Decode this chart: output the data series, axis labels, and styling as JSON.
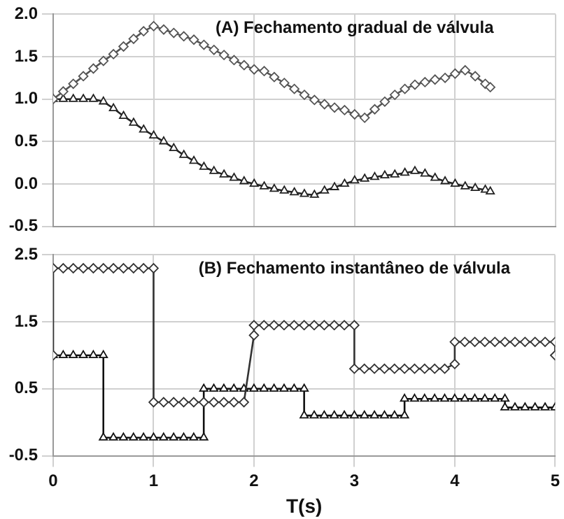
{
  "chart_data": [
    {
      "type": "line",
      "annotations": [
        "(A) Fechamento gradual de válvula"
      ],
      "xlim": [
        0,
        5
      ],
      "xticks": [
        0,
        1,
        2,
        3,
        4,
        5
      ],
      "ylim": [
        -0.5,
        2.0
      ],
      "yticks": [
        {
          "value": -0.5,
          "label": "-0.5"
        },
        {
          "value": 0,
          "label": "0.0"
        },
        {
          "value": 0.5,
          "label": "0.5"
        },
        {
          "value": 1,
          "label": "1.0"
        },
        {
          "value": 1.5,
          "label": "1.5"
        },
        {
          "value": 2,
          "label": "2.0"
        }
      ],
      "tick_labels": "y",
      "grid": true,
      "legend": false,
      "line_style": "solid",
      "series": [
        {
          "color": "#555555",
          "marker": "diamond",
          "x": [
            0,
            0.1,
            0.2,
            0.3,
            0.4,
            0.5,
            0.6,
            0.7,
            0.8,
            0.9,
            1,
            1.1,
            1.2,
            1.3,
            1.4,
            1.5,
            1.6,
            1.7,
            1.8,
            1.9,
            2,
            2.1,
            2.2,
            2.3,
            2.4,
            2.5,
            2.6,
            2.7,
            2.8,
            2.9,
            3,
            3.1,
            3.2,
            3.3,
            3.4,
            3.5,
            3.6,
            3.7,
            3.8,
            3.9,
            4,
            4.1,
            4.2,
            4.3,
            4.35
          ],
          "values": [
            1.0,
            1.09,
            1.18,
            1.27,
            1.36,
            1.45,
            1.53,
            1.62,
            1.71,
            1.8,
            1.86,
            1.82,
            1.78,
            1.74,
            1.7,
            1.64,
            1.58,
            1.52,
            1.46,
            1.4,
            1.35,
            1.33,
            1.26,
            1.19,
            1.12,
            1.05,
            0.99,
            0.94,
            0.9,
            0.87,
            0.82,
            0.78,
            0.88,
            0.97,
            1.05,
            1.12,
            1.17,
            1.2,
            1.23,
            1.25,
            1.3,
            1.34,
            1.27,
            1.18,
            1.14
          ]
        },
        {
          "color": "#222222",
          "marker": "triangle",
          "x": [
            0,
            0.1,
            0.2,
            0.3,
            0.4,
            0.5,
            0.6,
            0.7,
            0.8,
            0.9,
            1,
            1.1,
            1.2,
            1.3,
            1.4,
            1.5,
            1.6,
            1.7,
            1.8,
            1.9,
            2,
            2.1,
            2.2,
            2.3,
            2.4,
            2.5,
            2.6,
            2.7,
            2.8,
            2.9,
            3,
            3.1,
            3.2,
            3.3,
            3.4,
            3.5,
            3.6,
            3.7,
            3.8,
            3.9,
            4,
            4.1,
            4.2,
            4.3,
            4.35
          ],
          "values": [
            1.0,
            1.0,
            1.0,
            1.0,
            1.0,
            0.97,
            0.89,
            0.8,
            0.72,
            0.64,
            0.57,
            0.5,
            0.42,
            0.34,
            0.27,
            0.2,
            0.15,
            0.11,
            0.07,
            0.03,
            0.0,
            -0.03,
            -0.06,
            -0.08,
            -0.1,
            -0.12,
            -0.13,
            -0.08,
            -0.04,
            0.0,
            0.04,
            0.06,
            0.08,
            0.1,
            0.11,
            0.13,
            0.15,
            0.12,
            0.07,
            0.03,
            0.0,
            -0.03,
            -0.05,
            -0.07,
            -0.09
          ]
        }
      ]
    },
    {
      "type": "line",
      "annotations": [
        "(B) Fechamento instantâneo de válvula"
      ],
      "xlabel": "T(s)",
      "xlim": [
        0,
        5
      ],
      "xticks": [
        0,
        1,
        2,
        3,
        4,
        5
      ],
      "ylim": [
        -0.5,
        2.5
      ],
      "yticks": [
        -0.5,
        0.5,
        1.5,
        2.5
      ],
      "grid": true,
      "legend": false,
      "line_style": "solid",
      "series": [
        {
          "color": "#333333",
          "marker": "diamond",
          "x": [
            0,
            0,
            0.1,
            0.2,
            0.3,
            0.4,
            0.5,
            0.6,
            0.7,
            0.8,
            0.9,
            1,
            1,
            1.1,
            1.2,
            1.3,
            1.4,
            1.5,
            1.6,
            1.7,
            1.8,
            1.9,
            2,
            2,
            2.1,
            2.2,
            2.3,
            2.4,
            2.5,
            2.6,
            2.7,
            2.8,
            2.9,
            3,
            3,
            3.1,
            3.2,
            3.3,
            3.4,
            3.5,
            3.6,
            3.7,
            3.8,
            3.9,
            4,
            4,
            4.1,
            4.2,
            4.3,
            4.4,
            4.5,
            4.6,
            4.7,
            4.8,
            4.9,
            5,
            5
          ],
          "values": [
            1.0,
            2.3,
            2.3,
            2.3,
            2.3,
            2.3,
            2.3,
            2.3,
            2.3,
            2.3,
            2.3,
            2.3,
            0.3,
            0.3,
            0.3,
            0.3,
            0.3,
            0.3,
            0.3,
            0.3,
            0.3,
            0.3,
            1.3,
            1.45,
            1.45,
            1.45,
            1.45,
            1.45,
            1.45,
            1.45,
            1.45,
            1.45,
            1.45,
            1.45,
            0.8,
            0.8,
            0.8,
            0.8,
            0.8,
            0.8,
            0.8,
            0.8,
            0.8,
            0.8,
            0.87,
            1.2,
            1.2,
            1.2,
            1.2,
            1.2,
            1.2,
            1.2,
            1.2,
            1.2,
            1.2,
            1.2,
            1.0
          ]
        },
        {
          "color": "#111111",
          "marker": "triangle",
          "x": [
            0,
            0.1,
            0.2,
            0.3,
            0.4,
            0.5,
            0.5,
            0.6,
            0.7,
            0.8,
            0.9,
            1,
            1.1,
            1.2,
            1.3,
            1.4,
            1.5,
            1.5,
            1.6,
            1.7,
            1.8,
            1.9,
            2,
            2.1,
            2.2,
            2.3,
            2.4,
            2.5,
            2.5,
            2.6,
            2.7,
            2.8,
            2.9,
            3,
            3.1,
            3.2,
            3.3,
            3.4,
            3.5,
            3.5,
            3.6,
            3.7,
            3.8,
            3.9,
            4,
            4.1,
            4.2,
            4.3,
            4.4,
            4.5,
            4.5,
            4.6,
            4.7,
            4.8,
            4.9,
            5
          ],
          "values": [
            1.0,
            1.0,
            1.0,
            1.0,
            1.0,
            1.0,
            -0.23,
            -0.23,
            -0.23,
            -0.23,
            -0.23,
            -0.23,
            -0.23,
            -0.23,
            -0.23,
            -0.23,
            -0.23,
            0.5,
            0.5,
            0.5,
            0.5,
            0.5,
            0.5,
            0.5,
            0.5,
            0.5,
            0.5,
            0.5,
            0.1,
            0.1,
            0.1,
            0.1,
            0.1,
            0.1,
            0.1,
            0.1,
            0.1,
            0.1,
            0.1,
            0.35,
            0.35,
            0.35,
            0.35,
            0.35,
            0.35,
            0.35,
            0.35,
            0.35,
            0.35,
            0.35,
            0.22,
            0.22,
            0.22,
            0.22,
            0.22,
            0.22
          ]
        }
      ]
    }
  ]
}
